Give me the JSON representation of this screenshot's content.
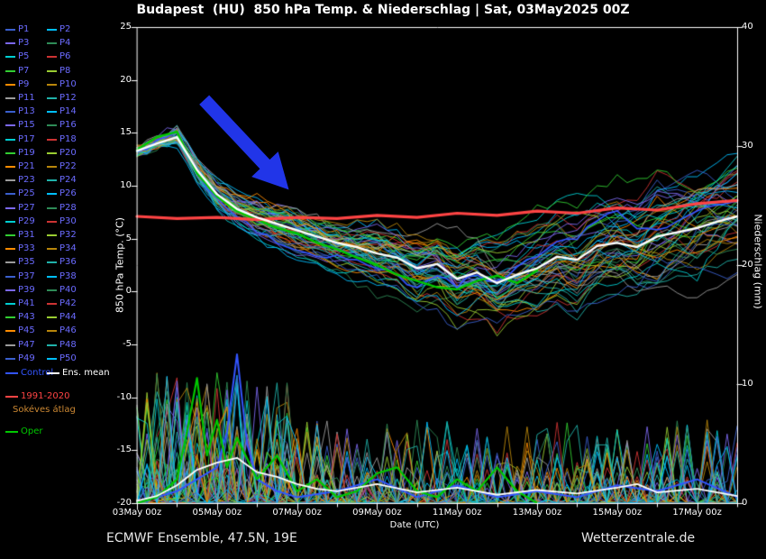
{
  "title": "Budapest  (HU)  850 hPa Temp. & Niederschlag | Sat, 03May2025 00Z",
  "footer": {
    "left": "ECMWF Ensemble, 47.5N, 19E",
    "right": "Wetterzentrale.de"
  },
  "legend": {
    "members": [
      "P1",
      "P2",
      "P3",
      "P4",
      "P5",
      "P6",
      "P7",
      "P8",
      "P9",
      "P10",
      "P11",
      "P12",
      "P13",
      "P14",
      "P15",
      "P16",
      "P17",
      "P18",
      "P19",
      "P20",
      "P21",
      "P22",
      "P23",
      "P24",
      "P25",
      "P26",
      "P27",
      "P28",
      "P29",
      "P30",
      "P31",
      "P32",
      "P33",
      "P34",
      "P35",
      "P36",
      "P37",
      "P38",
      "P39",
      "P40",
      "P41",
      "P42",
      "P43",
      "P44",
      "P45",
      "P46",
      "P47",
      "P48",
      "P49",
      "P50"
    ],
    "palette": [
      "#3a5fcd",
      "#00bfff",
      "#7b68ee",
      "#2e8b57",
      "#00ced1",
      "#cd3333",
      "#32cd32",
      "#9acd32",
      "#ff8c00",
      "#b8860b",
      "#9b9b9b",
      "#20b2aa"
    ],
    "member_label_color": "#6b6bff",
    "control_label": "Control",
    "control_color": "#3355ff",
    "ens_mean_label": "Ens. mean",
    "ens_mean_color": "#ffffff",
    "climate_label": "1991-2020",
    "climate_color": "#ff4444",
    "climate_sublabel": "Sokéves átlag",
    "climate_sublabel_color": "#cc8833",
    "oper_label": "Oper",
    "oper_color": "#00c800"
  },
  "chart_data": {
    "type": "line",
    "title": "Budapest (HU) 850 hPa Temp. & Niederschlag | Sat, 03May2025 00Z",
    "xlabel": "Date (UTC)",
    "ylabel_left": "850 hPa Temp. (°C)",
    "ylabel_right": "Niederschlag (mm)",
    "ylim_left": [
      -20,
      25
    ],
    "ylim_right": [
      0,
      40
    ],
    "x_hours_range": [
      0,
      360
    ],
    "grid": false,
    "x_ticks": [
      {
        "hour": 0,
        "label": "03May 00z"
      },
      {
        "hour": 48,
        "label": "05May 00z"
      },
      {
        "hour": 96,
        "label": "07May 00z"
      },
      {
        "hour": 144,
        "label": "09May 00z"
      },
      {
        "hour": 192,
        "label": "11May 00z"
      },
      {
        "hour": 240,
        "label": "13May 00z"
      },
      {
        "hour": 288,
        "label": "15May 00z"
      },
      {
        "hour": 336,
        "label": "17May 00z"
      }
    ],
    "y_ticks_left": [
      25,
      20,
      15,
      10,
      5,
      0,
      -5,
      -10,
      -15,
      -20
    ],
    "y_ticks_right": [
      40,
      30,
      20,
      10,
      0
    ],
    "series": {
      "ens_mean_temp": {
        "hours": [
          0,
          12,
          24,
          36,
          48,
          60,
          72,
          84,
          96,
          108,
          120,
          132,
          144,
          156,
          168,
          180,
          192,
          204,
          216,
          228,
          240,
          252,
          264,
          276,
          288,
          300,
          312,
          324,
          336,
          348,
          360
        ],
        "values": [
          13.3,
          14.0,
          14.6,
          11.5,
          9.2,
          7.8,
          7.0,
          6.4,
          5.8,
          5.2,
          4.6,
          4.2,
          3.6,
          3.2,
          2.2,
          2.6,
          1.2,
          1.8,
          0.8,
          1.6,
          2.2,
          3.3,
          3.0,
          4.3,
          4.6,
          4.2,
          5.2,
          5.6,
          6.0,
          6.6,
          7.1
        ]
      },
      "climate_mean": {
        "hours": [
          0,
          24,
          48,
          72,
          96,
          120,
          144,
          168,
          192,
          216,
          240,
          264,
          288,
          312,
          336,
          360
        ],
        "values": [
          7.1,
          6.9,
          7.0,
          6.8,
          7.0,
          6.9,
          7.2,
          7.0,
          7.4,
          7.2,
          7.6,
          7.4,
          7.9,
          7.7,
          8.3,
          8.6
        ]
      },
      "oper_temp": {
        "hours": [
          0,
          12,
          24,
          36,
          48,
          60,
          72,
          84,
          96,
          108,
          120,
          132,
          144,
          156,
          168,
          180,
          192,
          204,
          216,
          228,
          240
        ],
        "values": [
          13.4,
          14.6,
          15.1,
          11.2,
          9.0,
          7.6,
          6.8,
          6.0,
          5.5,
          4.6,
          4.0,
          3.2,
          2.5,
          1.6,
          1.0,
          0.4,
          0.2,
          1.0,
          1.5,
          0.8,
          2.0
        ]
      },
      "ens_mean_precip": {
        "hours": [
          0,
          12,
          24,
          36,
          48,
          60,
          72,
          84,
          96,
          108,
          120,
          144,
          168,
          192,
          216,
          240,
          264,
          288,
          300,
          312,
          336,
          360
        ],
        "values": [
          0.2,
          0.6,
          1.5,
          2.8,
          3.4,
          3.8,
          2.6,
          2.2,
          1.6,
          1.2,
          1.0,
          1.6,
          0.9,
          1.3,
          0.7,
          1.1,
          0.8,
          1.3,
          1.6,
          0.9,
          1.2,
          0.6
        ]
      },
      "control_precip": {
        "hours": [
          0,
          12,
          24,
          36,
          48,
          54,
          60,
          66,
          72,
          84,
          96,
          120,
          144,
          168,
          192,
          216,
          240,
          264,
          288,
          312,
          336,
          360
        ],
        "values": [
          0,
          0.5,
          1,
          2,
          3,
          6,
          12.5,
          5,
          2,
          1,
          0.5,
          1,
          2,
          0.5,
          1.5,
          0.5,
          1,
          0.5,
          1.5,
          1,
          2,
          0.5
        ]
      },
      "oper_precip": {
        "hours": [
          0,
          12,
          24,
          30,
          36,
          42,
          48,
          54,
          60,
          72,
          84,
          96,
          108,
          120,
          132,
          144,
          156,
          168,
          180,
          192,
          204,
          216,
          228,
          240
        ],
        "values": [
          0,
          0.5,
          2,
          6,
          10.5,
          4,
          7,
          3,
          5.5,
          2,
          4,
          1,
          2,
          0.5,
          1,
          2.5,
          3,
          1,
          0.5,
          2,
          1,
          3,
          1,
          0
        ]
      }
    },
    "ensemble": {
      "count": 50,
      "spread_hours": [
        0,
        48,
        96,
        144,
        192,
        240,
        288,
        336,
        360
      ],
      "spread_sigma": [
        0.6,
        1.2,
        1.9,
        2.4,
        2.9,
        3.3,
        3.7,
        4.1,
        4.3
      ],
      "precip_max": 14
    }
  },
  "annotation_arrow": {
    "from": [
      226,
      110
    ],
    "to": [
      322,
      212
    ],
    "shaft_width": 17,
    "head_length": 42,
    "head_width": 44,
    "color": "#2135e8",
    "outline": "#000000",
    "outline_width": 2
  }
}
